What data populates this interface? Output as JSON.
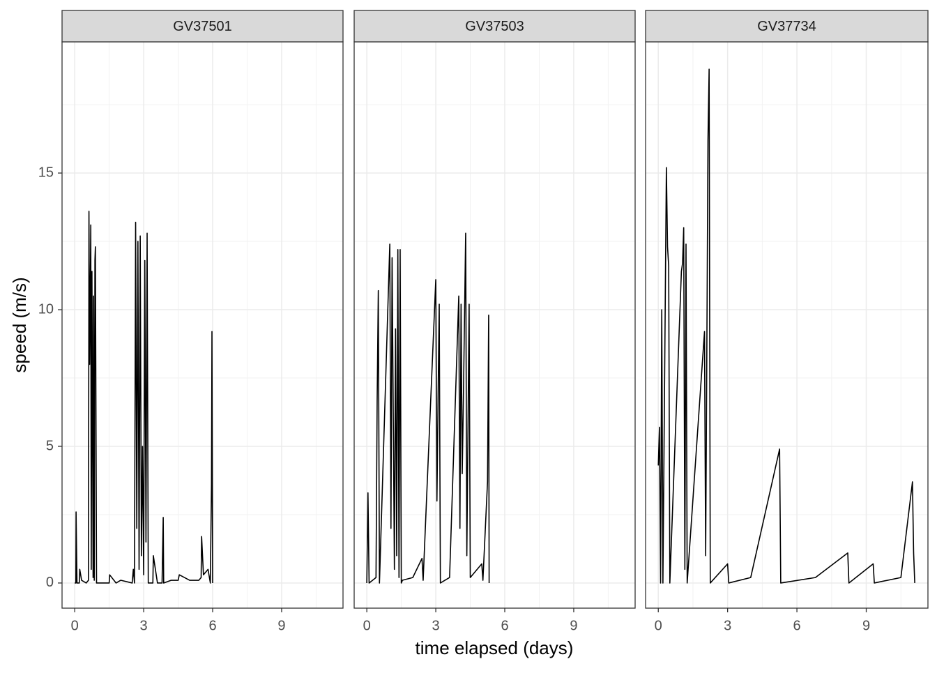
{
  "chart_data": {
    "type": "line",
    "xlabel": "time elapsed (days)",
    "ylabel": "speed (m/s)",
    "xlim": [
      -0.55,
      11.67
    ],
    "ylim": [
      -0.92,
      19.8
    ],
    "xticks": [
      0,
      3,
      6,
      9
    ],
    "yticks": [
      0,
      5,
      10,
      15
    ],
    "x_minor_ticks": [
      1.5,
      4.5,
      7.5,
      10.5
    ],
    "y_minor_ticks": [
      2.5,
      7.5,
      12.5,
      17.5
    ],
    "grid": true,
    "color": "#000000",
    "series": [
      {
        "name": "GV37501",
        "x": [
          0,
          0.05,
          0.06,
          0.1,
          0.2,
          0.22,
          0.3,
          0.5,
          0.6,
          0.62,
          0.65,
          0.7,
          0.72,
          0.75,
          0.8,
          0.82,
          0.85,
          0.88,
          0.9,
          0.95,
          1.0,
          1.05,
          1.1,
          1.3,
          1.5,
          1.52,
          1.8,
          2.0,
          2.5,
          2.55,
          2.6,
          2.65,
          2.7,
          2.75,
          2.8,
          2.85,
          2.9,
          2.95,
          3.0,
          3.05,
          3.1,
          3.15,
          3.2,
          3.4,
          3.42,
          3.6,
          3.8,
          3.85,
          3.87,
          4.2,
          4.5,
          4.55,
          5.0,
          5.4,
          5.5,
          5.52,
          5.6,
          5.8,
          5.9,
          5.95,
          5.97,
          6.0
        ],
        "values": [
          0,
          0,
          2.6,
          0,
          0,
          0.5,
          0.1,
          0,
          0.1,
          13.6,
          8,
          13.1,
          0.5,
          11.4,
          0.2,
          10.5,
          0.1,
          11.8,
          12.3,
          0,
          0,
          0,
          0,
          0,
          0,
          0.3,
          0,
          0.1,
          0,
          0.5,
          0,
          13.2,
          2,
          12.5,
          0.5,
          12.7,
          1,
          5,
          0.3,
          11.8,
          1.5,
          12.8,
          0,
          0,
          1,
          0,
          0,
          2.4,
          0,
          0.1,
          0.1,
          0.3,
          0.1,
          0.1,
          0.2,
          1.7,
          0.3,
          0.5,
          0,
          3.6,
          9.2,
          0
        ]
      },
      {
        "name": "GV37503",
        "x": [
          0,
          0.05,
          0.1,
          0.4,
          0.45,
          0.5,
          0.55,
          1.0,
          1.05,
          1.1,
          1.2,
          1.25,
          1.3,
          1.35,
          1.4,
          1.45,
          1.5,
          1.55,
          2.0,
          2.4,
          2.45,
          3.0,
          3.05,
          3.1,
          3.15,
          3.2,
          3.6,
          4.0,
          4.05,
          4.1,
          4.15,
          4.2,
          4.3,
          4.35,
          4.45,
          4.5,
          5.0,
          5.05,
          5.25,
          5.3,
          5.32
        ],
        "values": [
          0,
          3.3,
          0,
          0.2,
          6.7,
          10.7,
          0,
          12.4,
          2,
          11.9,
          0.5,
          9.3,
          1,
          12.2,
          0.2,
          12.2,
          0,
          0.1,
          0.2,
          0.9,
          0.1,
          11.1,
          3,
          6.8,
          10.2,
          0,
          0.2,
          10.5,
          2,
          10.2,
          4,
          6.7,
          12.8,
          1,
          10.2,
          0.2,
          0.7,
          0.1,
          3.7,
          9.8,
          0
        ]
      },
      {
        "name": "GV37734",
        "x": [
          0,
          0.05,
          0.1,
          0.15,
          0.2,
          0.35,
          0.4,
          0.45,
          0.5,
          1.0,
          1.05,
          1.1,
          1.15,
          1.2,
          1.25,
          2.0,
          2.05,
          2.1,
          2.15,
          2.2,
          2.25,
          3.0,
          3.05,
          4.0,
          5.25,
          5.3,
          6.8,
          8.2,
          8.25,
          9.3,
          9.35,
          10.5,
          11.0,
          11.05,
          11.1
        ],
        "values": [
          4.3,
          5.7,
          0,
          10,
          0,
          15.2,
          12.3,
          11.6,
          0,
          11.4,
          11.7,
          13,
          0.5,
          12.4,
          0,
          9.2,
          1,
          8.3,
          16.2,
          18.8,
          0,
          0.7,
          0,
          0.2,
          4.9,
          0,
          0.2,
          1.1,
          0,
          0.7,
          0,
          0.2,
          3.7,
          1.1,
          0
        ]
      }
    ]
  }
}
